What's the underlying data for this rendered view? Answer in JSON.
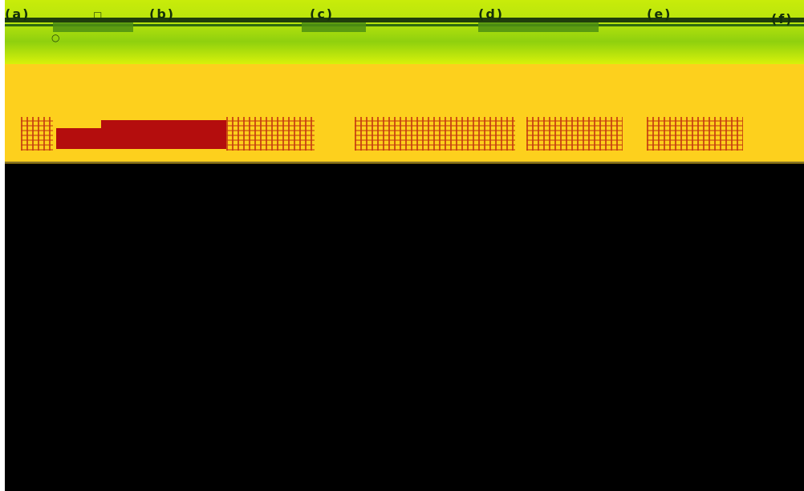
{
  "colors": {
    "green_band": "#b7e40c",
    "dark_stripe": "#1f3d0b",
    "yellow_band": "#fdd01d",
    "red_block": "#b40d0d",
    "black_area": "#000000"
  },
  "labels": {
    "a": "(a)",
    "b": "(b)",
    "c": "(c)",
    "d": "(d)",
    "e": "(e)",
    "f": "(f)"
  },
  "icons": {
    "small_top_icon": "square-icon",
    "round_icon": "circle-icon"
  }
}
